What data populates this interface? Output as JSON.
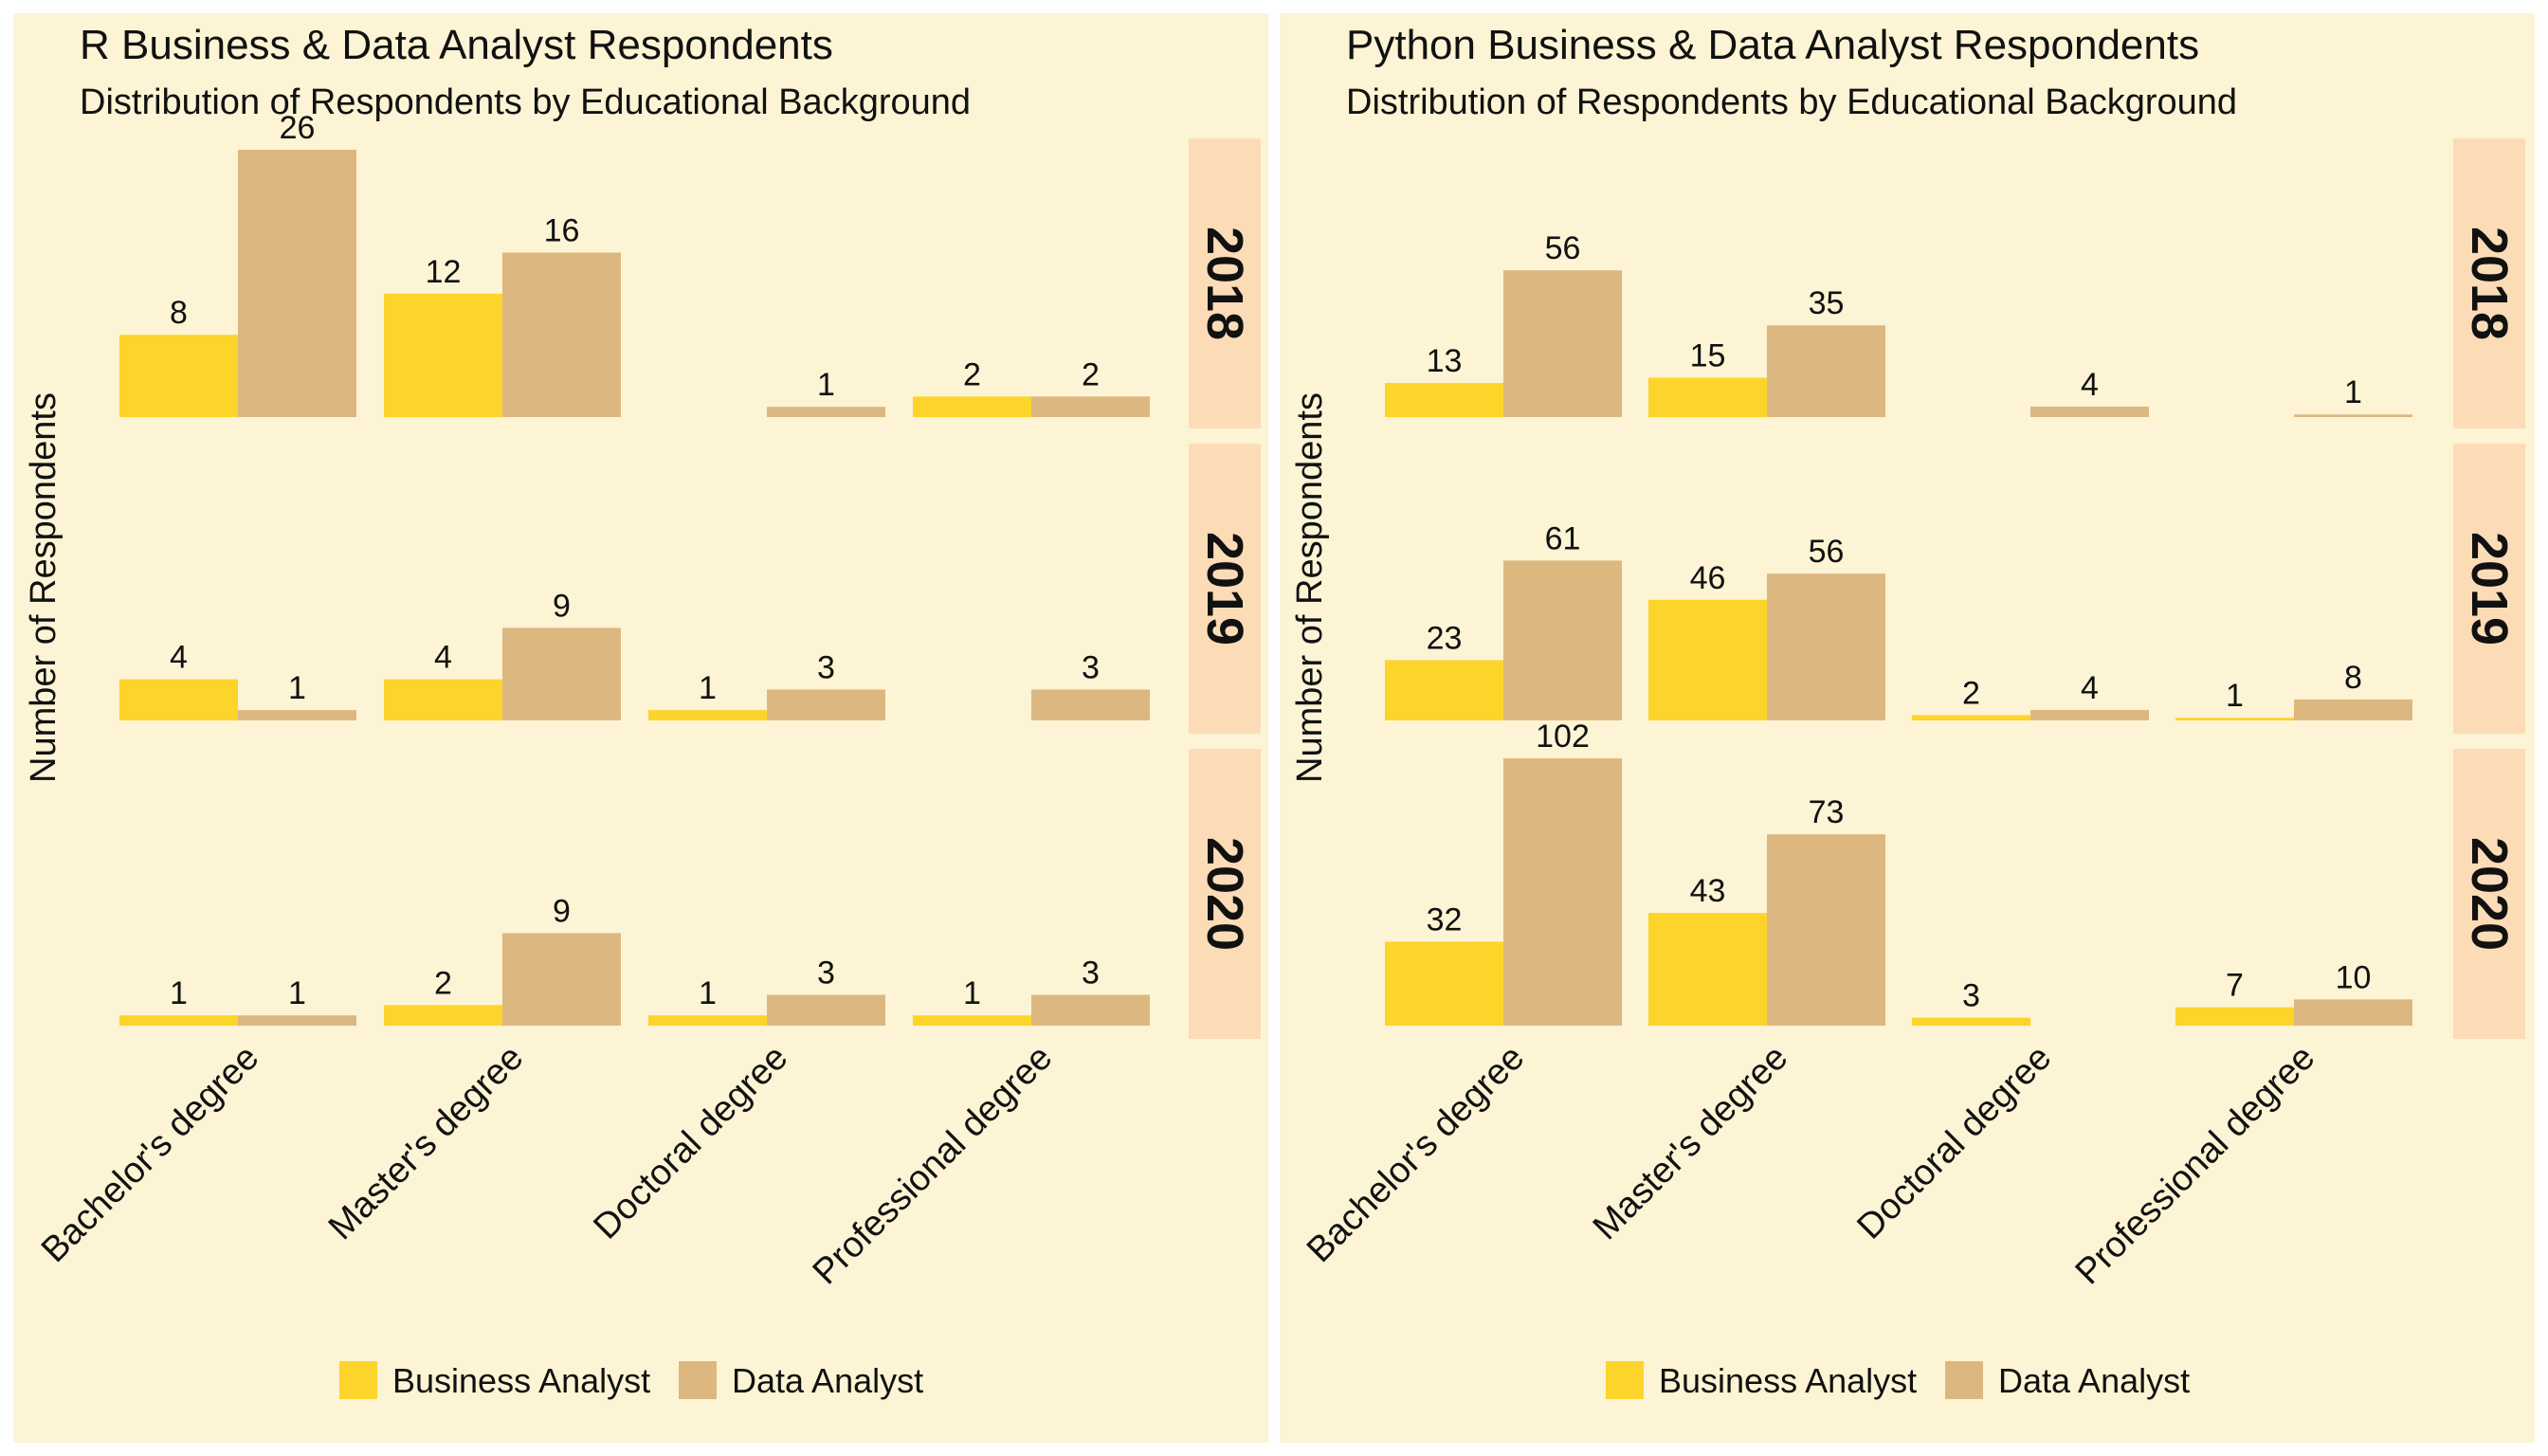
{
  "chart_data": [
    {
      "type": "bar",
      "title": "R Business & Data Analyst Respondents",
      "subtitle": "Distribution of Respondents by Educational Background",
      "ylabel": "Number of Respondents",
      "xlabel": "",
      "categories": [
        "Bachelor's degree",
        "Master's degree",
        "Doctoral degree",
        "Professional degree"
      ],
      "facets": [
        "2018",
        "2019",
        "2020"
      ],
      "legend": {
        "position": "bottom",
        "entries": [
          "Business Analyst",
          "Data Analyst"
        ]
      },
      "colors": {
        "Business Analyst": "#fdd42a",
        "Data Analyst": "#dcb880"
      },
      "ylim": [
        0,
        26
      ],
      "grid": false,
      "data": {
        "2018": {
          "Business Analyst": [
            8,
            12,
            null,
            2
          ],
          "Data Analyst": [
            26,
            16,
            1,
            2
          ]
        },
        "2019": {
          "Business Analyst": [
            4,
            4,
            1,
            null
          ],
          "Data Analyst": [
            1,
            9,
            3,
            3
          ]
        },
        "2020": {
          "Business Analyst": [
            1,
            2,
            1,
            1
          ],
          "Data Analyst": [
            1,
            9,
            3,
            3
          ]
        }
      }
    },
    {
      "type": "bar",
      "title": "Python Business & Data Analyst Respondents",
      "subtitle": "Distribution of Respondents by Educational Background",
      "ylabel": "Number of Respondents",
      "xlabel": "",
      "categories": [
        "Bachelor's degree",
        "Master's degree",
        "Doctoral degree",
        "Professional degree"
      ],
      "facets": [
        "2018",
        "2019",
        "2020"
      ],
      "legend": {
        "position": "bottom",
        "entries": [
          "Business Analyst",
          "Data Analyst"
        ]
      },
      "colors": {
        "Business Analyst": "#fdd42a",
        "Data Analyst": "#dcb880"
      },
      "ylim": [
        0,
        102
      ],
      "grid": false,
      "data": {
        "2018": {
          "Business Analyst": [
            13,
            15,
            null,
            null
          ],
          "Data Analyst": [
            56,
            35,
            4,
            1
          ]
        },
        "2019": {
          "Business Analyst": [
            23,
            46,
            2,
            1
          ],
          "Data Analyst": [
            61,
            56,
            4,
            8
          ]
        },
        "2020": {
          "Business Analyst": [
            32,
            43,
            3,
            7
          ],
          "Data Analyst": [
            102,
            73,
            null,
            10
          ]
        }
      }
    }
  ]
}
